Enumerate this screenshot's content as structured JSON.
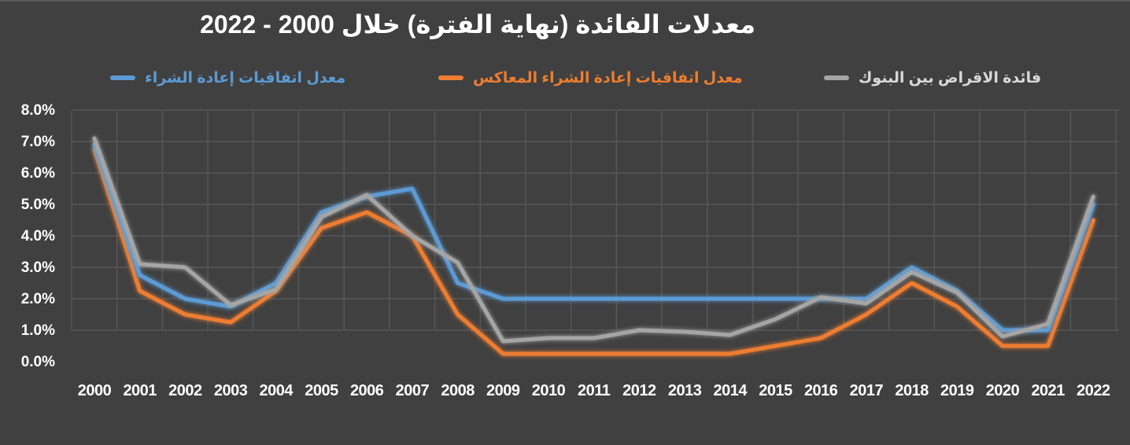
{
  "chart_data": {
    "type": "line",
    "title": "معدلات الفائدة (نهاية الفترة) خلال 2000 - 2022",
    "xlabel": "",
    "ylabel": "",
    "ylim": [
      0,
      8
    ],
    "grid": true,
    "legend_position": "top",
    "y_tick_labels": [
      "8.0%",
      "7.0%",
      "6.0%",
      "5.0%",
      "4.0%",
      "3.0%",
      "2.0%",
      "1.0%",
      "0.0%"
    ],
    "categories": [
      "2000",
      "2001",
      "2002",
      "2003",
      "2004",
      "2005",
      "2006",
      "2007",
      "2008",
      "2009",
      "2010",
      "2011",
      "2012",
      "2013",
      "2014",
      "2015",
      "2016",
      "2017",
      "2018",
      "2019",
      "2020",
      "2021",
      "2022"
    ],
    "series": [
      {
        "name": "معدل اتفاقيات إعادة الشراء",
        "color": "#5b9bd5",
        "values": [
          6.9,
          2.75,
          2.0,
          1.75,
          2.5,
          4.75,
          5.25,
          5.5,
          2.5,
          2.0,
          2.0,
          2.0,
          2.0,
          2.0,
          2.0,
          2.0,
          2.0,
          2.0,
          3.0,
          2.25,
          1.0,
          1.0,
          5.0
        ]
      },
      {
        "name": "معدل اتفاقيات إعادة الشراء المعاكس",
        "color": "#ed7d31",
        "values": [
          6.75,
          2.25,
          1.5,
          1.25,
          2.25,
          4.25,
          4.75,
          4.0,
          1.5,
          0.25,
          0.25,
          0.25,
          0.25,
          0.25,
          0.25,
          0.5,
          0.75,
          1.5,
          2.5,
          1.75,
          0.5,
          0.5,
          4.5
        ]
      },
      {
        "name": "فائدة الاقراض بين البنوك",
        "color": "#a5a5a5",
        "values": [
          7.1,
          3.1,
          3.0,
          1.8,
          2.3,
          4.6,
          5.3,
          4.0,
          3.15,
          0.65,
          0.75,
          0.75,
          1.0,
          0.95,
          0.85,
          1.35,
          2.05,
          1.85,
          2.85,
          2.2,
          0.8,
          1.2,
          5.25
        ]
      }
    ]
  },
  "colors": {
    "background": "#404040",
    "grid": "#575757",
    "text": "#ffffff"
  }
}
